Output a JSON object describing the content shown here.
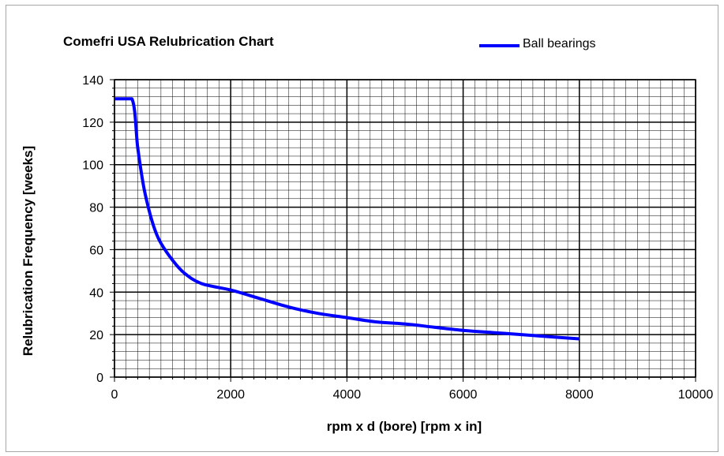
{
  "chart_data": {
    "type": "line",
    "title": "Comefri USA Relubrication Chart",
    "xlabel": "rpm x d (bore) [rpm x in]",
    "ylabel": "Relubrication Frequency [weeks]",
    "xlim": [
      0,
      10000
    ],
    "ylim": [
      0,
      140
    ],
    "xticks": [
      0,
      2000,
      4000,
      6000,
      8000,
      10000
    ],
    "yticks": [
      0,
      20,
      40,
      60,
      80,
      100,
      120,
      140
    ],
    "minor_grid": {
      "x_step": 200,
      "y_step": 4
    },
    "grid": true,
    "legend_position": "top-right",
    "series": [
      {
        "name": "Ball bearings",
        "color": "#0000ff",
        "x": [
          0,
          300,
          400,
          500,
          600,
          700,
          800,
          1000,
          1200,
          1500,
          2000,
          2500,
          3000,
          3500,
          4000,
          4500,
          5000,
          5500,
          6000,
          6500,
          7000,
          7500,
          8000
        ],
        "y": [
          131,
          131,
          108,
          90,
          78,
          69,
          63,
          55,
          49,
          44,
          41,
          37,
          33,
          30,
          28,
          26,
          25,
          23.5,
          22,
          21,
          20,
          19,
          18
        ]
      }
    ]
  }
}
